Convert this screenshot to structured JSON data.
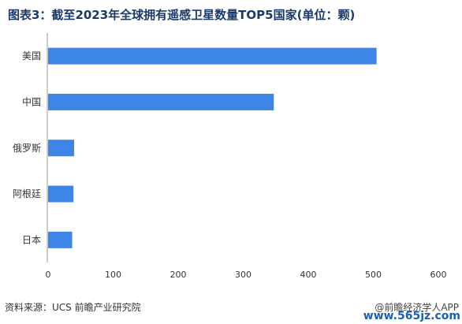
{
  "title": "图表3：截至2023年全球拥有遥感卫星数量TOP5国家(单位：颗)",
  "source": "资料来源：UCS 前瞻产业研究院",
  "watermark": "@前瞻经济学人APP",
  "site": "www.565jz.com",
  "colors": {
    "bar": "#3d85e6",
    "axis": "#999999",
    "title": "#1a3a6b"
  },
  "chart_data": {
    "type": "bar",
    "orientation": "horizontal",
    "title": "图表3：截至2023年全球拥有遥感卫星数量TOP5国家(单位：颗)",
    "categories": [
      "美国",
      "中国",
      "俄罗斯",
      "阿根廷",
      "日本"
    ],
    "values": [
      505,
      347,
      40,
      39,
      37
    ],
    "xlim": [
      0,
      600
    ],
    "xticks": [
      0,
      100,
      200,
      300,
      400,
      500,
      600
    ],
    "grid": false,
    "legend": "none"
  }
}
